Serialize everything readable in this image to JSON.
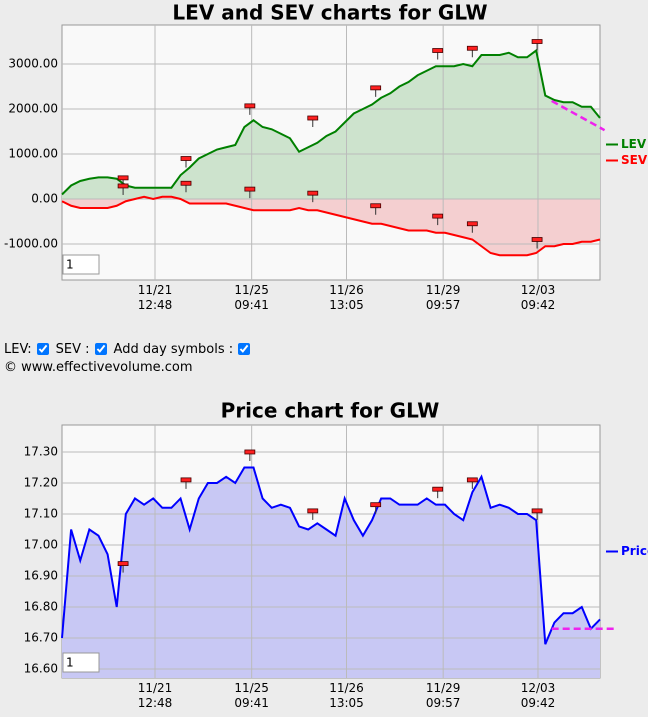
{
  "chart_data": [
    {
      "type": "line",
      "title": "LEV and SEV charts for GLW",
      "range_box": "1",
      "xlim": [
        0,
        59
      ],
      "xticks": [
        {
          "value": 10.2,
          "label": "11/21 12:48"
        },
        {
          "value": 20.8,
          "label": "11/25 09:41"
        },
        {
          "value": 31.2,
          "label": "11/26 13:05"
        },
        {
          "value": 41.8,
          "label": "11/29 09:57"
        },
        {
          "value": 52.2,
          "label": "12/03 09:42"
        }
      ],
      "ylim": [
        -1800,
        3867
      ],
      "yticks": [
        {
          "value": 3000,
          "label": "3000.00"
        },
        {
          "value": 2000,
          "label": "2000.00"
        },
        {
          "value": 1000,
          "label": "1000.00"
        },
        {
          "value": 0,
          "label": "0.00"
        },
        {
          "value": -1000,
          "label": "-1000.00"
        }
      ],
      "grid": true,
      "legend": "right",
      "series": [
        {
          "name": "LEV",
          "color": "#008000",
          "fill": "#cde3cd",
          "values": [
            100,
            300,
            400,
            450,
            480,
            480,
            450,
            300,
            250,
            250,
            250,
            250,
            250,
            530,
            700,
            900,
            1000,
            1100,
            1150,
            1200,
            1600,
            1750,
            1600,
            1550,
            1450,
            1350,
            1050,
            1150,
            1250,
            1400,
            1500,
            1700,
            1900,
            2000,
            2100,
            2250,
            2350,
            2500,
            2600,
            2750,
            2850,
            2950,
            2950,
            2950,
            3000,
            2950,
            3200,
            3200,
            3200,
            3250,
            3150,
            3150,
            3300,
            2300,
            2200,
            2150,
            2150,
            2050,
            2050,
            1800
          ],
          "day_marks": [
            {
              "x": 6.7,
              "y": 470
            },
            {
              "x": 13.6,
              "y": 900
            },
            {
              "x": 20.6,
              "y": 2070
            },
            {
              "x": 27.5,
              "y": 1800
            },
            {
              "x": 34.4,
              "y": 2470
            },
            {
              "x": 41.2,
              "y": 3300
            },
            {
              "x": 45,
              "y": 3350
            },
            {
              "x": 52.1,
              "y": 3500
            }
          ],
          "trend": [
            {
              "x": 53.7,
              "y": 2180
            },
            {
              "x": 59.5,
              "y": 1530
            }
          ]
        },
        {
          "name": "SEV",
          "color": "#ff0000",
          "fill": "#f4cfd0",
          "values": [
            -50,
            -150,
            -200,
            -200,
            -200,
            -200,
            -150,
            -50,
            0,
            50,
            0,
            50,
            50,
            0,
            -100,
            -100,
            -100,
            -100,
            -100,
            -150,
            -200,
            -250,
            -250,
            -250,
            -250,
            -250,
            -200,
            -250,
            -250,
            -300,
            -350,
            -400,
            -450,
            -500,
            -550,
            -550,
            -600,
            -650,
            -700,
            -700,
            -700,
            -750,
            -750,
            -800,
            -850,
            -900,
            -1050,
            -1200,
            -1250,
            -1250,
            -1250,
            -1250,
            -1200,
            -1050,
            -1050,
            -1000,
            -1000,
            -950,
            -950,
            -900
          ],
          "day_marks": [
            {
              "x": 6.7,
              "y": 290
            },
            {
              "x": 13.6,
              "y": 350
            },
            {
              "x": 20.6,
              "y": 220
            },
            {
              "x": 27.5,
              "y": 130
            },
            {
              "x": 34.4,
              "y": -150
            },
            {
              "x": 41.2,
              "y": -380
            },
            {
              "x": 45,
              "y": -550
            },
            {
              "x": 52.1,
              "y": -900
            }
          ]
        }
      ]
    },
    {
      "type": "line",
      "title": "Price chart for GLW",
      "range_box": "1",
      "xlim": [
        0,
        59
      ],
      "xticks": [
        {
          "value": 10.2,
          "label": "11/21 12:48"
        },
        {
          "value": 20.8,
          "label": "11/25 09:41"
        },
        {
          "value": 31.2,
          "label": "11/26 13:05"
        },
        {
          "value": 41.8,
          "label": "11/29 09:57"
        },
        {
          "value": 52.2,
          "label": "12/03 09:42"
        }
      ],
      "ylim": [
        16.571,
        17.387
      ],
      "yticks": [
        {
          "value": 17.3,
          "label": "17.30"
        },
        {
          "value": 17.2,
          "label": "17.20"
        },
        {
          "value": 17.1,
          "label": "17.10"
        },
        {
          "value": 17,
          "label": "17.00"
        },
        {
          "value": 16.9,
          "label": "16.90"
        },
        {
          "value": 16.8,
          "label": "16.80"
        },
        {
          "value": 16.7,
          "label": "16.70"
        },
        {
          "value": 16.6,
          "label": "16.60"
        }
      ],
      "grid": true,
      "legend": "right",
      "series": [
        {
          "name": "Price",
          "color": "#0000ff",
          "fill": "#c8c8f4",
          "values": [
            16.7,
            17.05,
            16.95,
            17.05,
            17.03,
            16.97,
            16.8,
            17.1,
            17.15,
            17.13,
            17.15,
            17.12,
            17.12,
            17.15,
            17.05,
            17.15,
            17.2,
            17.2,
            17.22,
            17.2,
            17.25,
            17.25,
            17.15,
            17.12,
            17.13,
            17.12,
            17.06,
            17.05,
            17.07,
            17.05,
            17.03,
            17.15,
            17.08,
            17.03,
            17.08,
            17.15,
            17.15,
            17.13,
            17.13,
            17.13,
            17.15,
            17.13,
            17.13,
            17.1,
            17.08,
            17.17,
            17.22,
            17.12,
            17.13,
            17.12,
            17.1,
            17.1,
            17.08,
            16.68,
            16.75,
            16.78,
            16.78,
            16.8,
            16.73,
            16.76
          ],
          "day_marks": [
            {
              "x": 6.7,
              "y": 16.94
            },
            {
              "x": 13.6,
              "y": 17.21
            },
            {
              "x": 20.6,
              "y": 17.3
            },
            {
              "x": 27.5,
              "y": 17.11
            },
            {
              "x": 34.4,
              "y": 17.13
            },
            {
              "x": 41.2,
              "y": 17.18
            },
            {
              "x": 45,
              "y": 17.21
            },
            {
              "x": 52.1,
              "y": 17.11
            }
          ],
          "trend": [
            {
              "x": 53.7,
              "y": 16.73
            },
            {
              "x": 60.6,
              "y": 16.73
            }
          ]
        }
      ]
    }
  ],
  "controls": {
    "lev": "LEV:",
    "sev": "SEV :",
    "day_symbols": "Add day symbols :",
    "copyright": "© www.effectivevolume.com"
  }
}
